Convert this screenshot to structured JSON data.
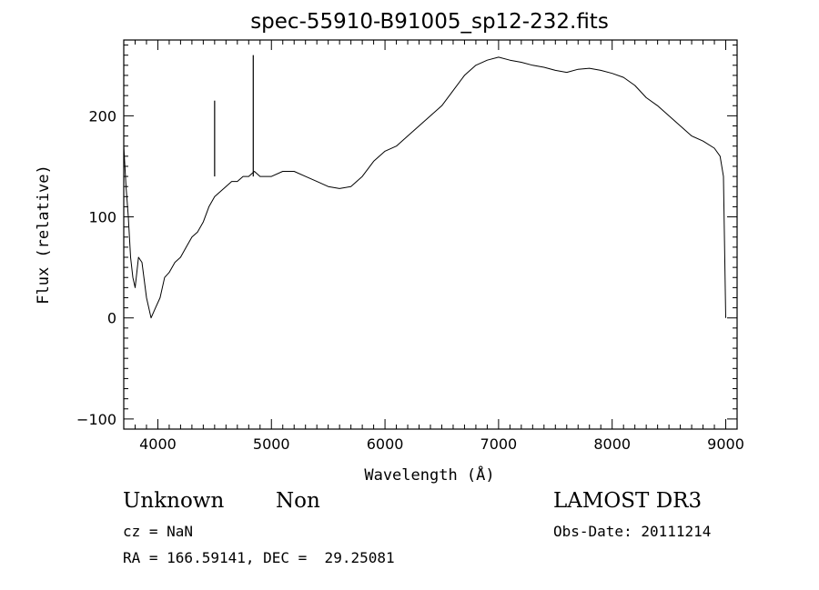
{
  "chart_data": {
    "type": "line",
    "title": "spec-55910-B91005_sp12-232.fits",
    "xlabel": "Wavelength (Å)",
    "ylabel": "Flux (relative)",
    "xlim": [
      3700,
      9100
    ],
    "ylim": [
      -110,
      275
    ],
    "x_ticks": [
      4000,
      5000,
      6000,
      7000,
      8000,
      9000
    ],
    "y_ticks": [
      -100,
      0,
      100,
      200
    ],
    "grid": false,
    "series": [
      {
        "color": "#000000",
        "x": [
          3700,
          3720,
          3740,
          3760,
          3780,
          3800,
          3830,
          3860,
          3900,
          3940,
          3980,
          4020,
          4060,
          4100,
          4150,
          4200,
          4250,
          4300,
          4350,
          4400,
          4450,
          4500,
          4550,
          4600,
          4650,
          4700,
          4750,
          4800,
          4850,
          4900,
          4950,
          5000,
          5100,
          5200,
          5300,
          5400,
          5500,
          5600,
          5700,
          5800,
          5900,
          6000,
          6100,
          6200,
          6300,
          6400,
          6500,
          6600,
          6700,
          6800,
          6900,
          7000,
          7100,
          7200,
          7300,
          7400,
          7500,
          7600,
          7700,
          7800,
          7900,
          8000,
          8100,
          8200,
          8300,
          8400,
          8500,
          8600,
          8700,
          8800,
          8900,
          8950,
          8980,
          9000
        ],
        "y": [
          170,
          130,
          100,
          60,
          40,
          30,
          60,
          55,
          20,
          0,
          10,
          20,
          40,
          45,
          55,
          60,
          70,
          80,
          85,
          95,
          110,
          120,
          125,
          130,
          135,
          135,
          140,
          140,
          145,
          140,
          140,
          140,
          145,
          145,
          140,
          135,
          130,
          128,
          130,
          140,
          155,
          165,
          170,
          180,
          190,
          200,
          210,
          225,
          240,
          250,
          255,
          258,
          255,
          253,
          250,
          248,
          245,
          243,
          246,
          247,
          245,
          242,
          238,
          230,
          218,
          210,
          200,
          190,
          180,
          175,
          168,
          160,
          140,
          0
        ]
      }
    ],
    "spikes": [
      {
        "x": 4500,
        "y": 215
      },
      {
        "x": 4840,
        "y": 260
      }
    ]
  },
  "info": {
    "object_class": "Unknown",
    "object_subclass": "Non",
    "survey": "LAMOST DR3",
    "cz": "cz = NaN",
    "obs_date": "Obs-Date: 20111214",
    "coords": "RA = 166.59141, DEC =  29.25081"
  }
}
